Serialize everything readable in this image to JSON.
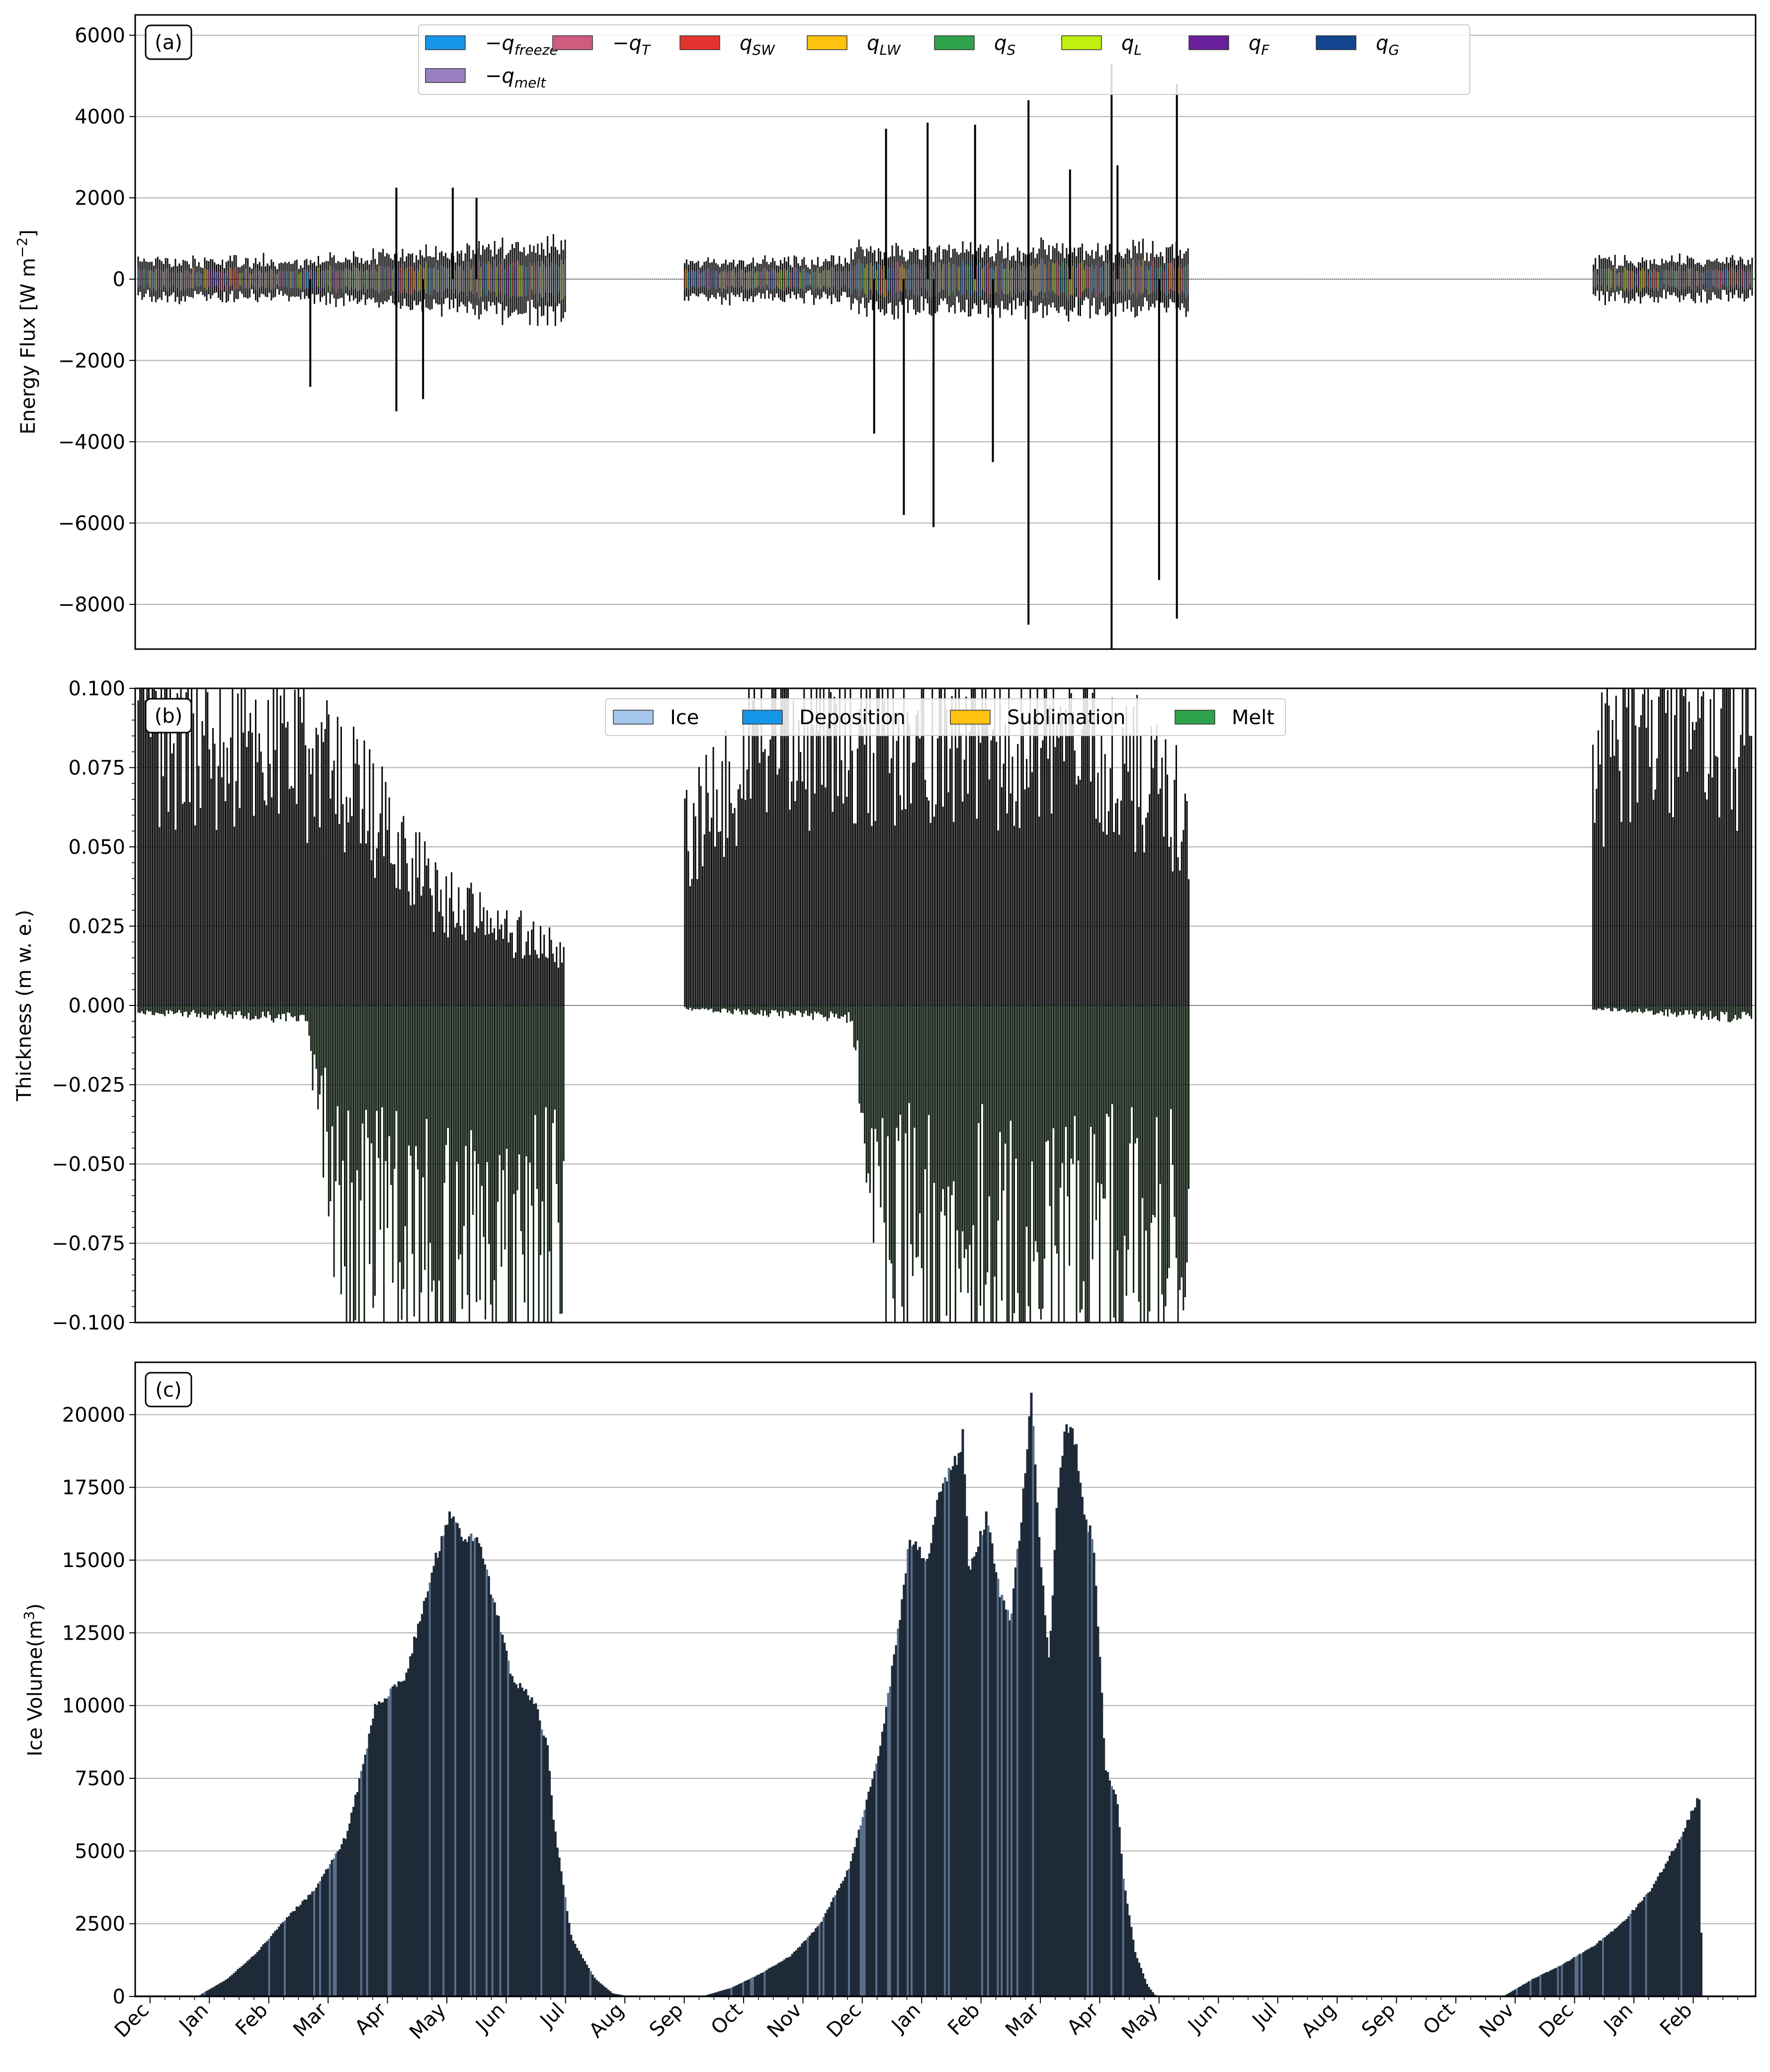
{
  "chart_data": [
    {
      "panel": "(a)",
      "type": "bar",
      "title": "",
      "xlabel": "",
      "ylabel": "Energy Flux [$W\\,m^{-2}$]",
      "ylabel_text": "Energy Flux [W m",
      "ylabel_sup": "−2",
      "ylabel_end": "]",
      "ylim": [
        -9100,
        6500
      ],
      "yticks": [
        6000,
        4000,
        2000,
        0,
        -2000,
        -4000,
        -6000,
        -8000
      ],
      "ytick_labels": [
        "6000",
        "4000",
        "2000",
        "0",
        "−2000",
        "−4000",
        "−6000",
        "−8000"
      ],
      "grid": "horizontal",
      "legend_position": "top-center",
      "legend": [
        {
          "name": "−q",
          "sub": "freeze",
          "color": "#1696e8"
        },
        {
          "name": "−q",
          "sub": "T",
          "color": "#cf5b7f"
        },
        {
          "name": "q",
          "sub": "SW",
          "color": "#e3342f"
        },
        {
          "name": "q",
          "sub": "LW",
          "color": "#ffc20e"
        },
        {
          "name": "q",
          "sub": "S",
          "color": "#2ca24a"
        },
        {
          "name": "q",
          "sub": "L",
          "color": "#bff00f"
        },
        {
          "name": "q",
          "sub": "F",
          "color": "#6a1f9a"
        },
        {
          "name": "q",
          "sub": "G",
          "color": "#12448f"
        },
        {
          "name": "−q",
          "sub": "melt",
          "color": "#9b7ec0"
        }
      ],
      "active_periods_month_index": [
        [
          0,
          7.2
        ],
        [
          9.2,
          17.7
        ],
        [
          24.5,
          27.2
        ]
      ],
      "typical_band": {
        "upper": 400,
        "lower": -400
      },
      "spikes": [
        {
          "month": 2.9,
          "value": -2650
        },
        {
          "month": 4.35,
          "value": 2250
        },
        {
          "month": 4.35,
          "value": -3250
        },
        {
          "month": 4.8,
          "value": -2950
        },
        {
          "month": 5.3,
          "value": 2250
        },
        {
          "month": 5.7,
          "value": 2000
        },
        {
          "month": 12.4,
          "value": -3800
        },
        {
          "month": 12.6,
          "value": 3700
        },
        {
          "month": 12.9,
          "value": -5800
        },
        {
          "month": 13.3,
          "value": 3850
        },
        {
          "month": 13.4,
          "value": -6100
        },
        {
          "month": 14.1,
          "value": 3800
        },
        {
          "month": 14.4,
          "value": -4500
        },
        {
          "month": 15.0,
          "value": 4400
        },
        {
          "month": 15.0,
          "value": -8500
        },
        {
          "month": 15.7,
          "value": 2700
        },
        {
          "month": 16.4,
          "value": 5300
        },
        {
          "month": 16.4,
          "value": -9100
        },
        {
          "month": 16.5,
          "value": 2800
        },
        {
          "month": 17.2,
          "value": -7400
        },
        {
          "month": 17.5,
          "value": 4800
        },
        {
          "month": 17.5,
          "value": -8350
        }
      ]
    },
    {
      "panel": "(b)",
      "type": "bar",
      "title": "",
      "xlabel": "",
      "ylabel": "Thickness ($m$ w. e.)",
      "ylabel_text": "Thickness (m w. e.)",
      "ylim": [
        -0.1,
        0.1
      ],
      "yticks": [
        0.1,
        0.075,
        0.05,
        0.025,
        0.0,
        -0.025,
        -0.05,
        -0.075,
        -0.1
      ],
      "ytick_labels": [
        "0.100",
        "0.075",
        "0.050",
        "0.025",
        "0.000",
        "−0.025",
        "−0.050",
        "−0.075",
        "−0.100"
      ],
      "grid": "horizontal",
      "legend_position": "top-center",
      "legend": [
        {
          "name": "Ice",
          "color": "#a4c6ea"
        },
        {
          "name": "Deposition",
          "color": "#1696e8"
        },
        {
          "name": "Sublimation",
          "color": "#ffc20e"
        },
        {
          "name": "Melt",
          "color": "#2ca24a"
        }
      ],
      "positive_envelope": [
        [
          0,
          0.1
        ],
        [
          2.5,
          0.1
        ],
        [
          3.5,
          0.08
        ],
        [
          4.5,
          0.06
        ],
        [
          5.0,
          0.04
        ],
        [
          6.0,
          0.03
        ],
        [
          7.2,
          0.02
        ],
        [
          9.2,
          0.06
        ],
        [
          10.0,
          0.085
        ],
        [
          10.5,
          0.1
        ],
        [
          16.0,
          0.1
        ],
        [
          17.7,
          0.07
        ],
        [
          24.5,
          0.08
        ],
        [
          25.0,
          0.1
        ],
        [
          27.2,
          0.1
        ]
      ],
      "negative_envelope": [
        [
          0,
          -0.002
        ],
        [
          2.8,
          -0.004
        ],
        [
          3.4,
          -0.1
        ],
        [
          5.6,
          -0.1
        ],
        [
          7.2,
          -0.1
        ],
        [
          9.2,
          -0.001
        ],
        [
          12.0,
          -0.004
        ],
        [
          12.6,
          -0.1
        ],
        [
          17.7,
          -0.1
        ],
        [
          24.5,
          -0.001
        ],
        [
          27.2,
          -0.004
        ]
      ]
    },
    {
      "panel": "(c)",
      "type": "bar",
      "title": "",
      "xlabel": "",
      "ylabel": "Ice Volume($m^3$)",
      "ylabel_text": "Ice Volume(m",
      "ylabel_sup": "3",
      "ylabel_end": ")",
      "ylim": [
        0,
        21800
      ],
      "yticks": [
        0,
        2500,
        5000,
        7500,
        10000,
        12500,
        15000,
        17500,
        20000
      ],
      "ytick_labels": [
        "0",
        "2500",
        "5000",
        "7500",
        "10000",
        "12500",
        "15000",
        "17500",
        "20000"
      ],
      "grid": "horizontal",
      "series_color": "#1f2a38",
      "volume_profile": [
        [
          0,
          0
        ],
        [
          1.0,
          0
        ],
        [
          1.5,
          600
        ],
        [
          2.0,
          1500
        ],
        [
          2.5,
          2700
        ],
        [
          3.0,
          3700
        ],
        [
          3.5,
          5500
        ],
        [
          3.8,
          8000
        ],
        [
          4.0,
          10000
        ],
        [
          4.5,
          11000
        ],
        [
          5.0,
          15000
        ],
        [
          5.25,
          16500
        ],
        [
          5.45,
          15800
        ],
        [
          5.75,
          15600
        ],
        [
          6.0,
          13500
        ],
        [
          6.3,
          11000
        ],
        [
          6.7,
          10000
        ],
        [
          6.9,
          8500
        ],
        [
          7.0,
          6000
        ],
        [
          7.3,
          2000
        ],
        [
          7.7,
          600
        ],
        [
          8.0,
          100
        ],
        [
          8.3,
          0
        ],
        [
          9.5,
          0
        ],
        [
          10.0,
          300
        ],
        [
          10.5,
          800
        ],
        [
          11.0,
          1400
        ],
        [
          11.5,
          2500
        ],
        [
          12.0,
          4500
        ],
        [
          12.5,
          8500
        ],
        [
          12.8,
          12500
        ],
        [
          13.0,
          15800
        ],
        [
          13.3,
          15000
        ],
        [
          13.5,
          17300
        ],
        [
          13.8,
          18500
        ],
        [
          13.9,
          19300
        ],
        [
          14.0,
          14500
        ],
        [
          14.3,
          16500
        ],
        [
          14.5,
          14000
        ],
        [
          14.7,
          13000
        ],
        [
          14.9,
          16800
        ],
        [
          15.05,
          20700
        ],
        [
          15.2,
          15000
        ],
        [
          15.35,
          11500
        ],
        [
          15.5,
          17500
        ],
        [
          15.65,
          19800
        ],
        [
          15.8,
          19000
        ],
        [
          15.95,
          16500
        ],
        [
          16.1,
          15600
        ],
        [
          16.3,
          7800
        ],
        [
          16.5,
          6700
        ],
        [
          16.6,
          4000
        ],
        [
          16.8,
          1500
        ],
        [
          17.0,
          400
        ],
        [
          17.15,
          0
        ],
        [
          23.0,
          0
        ],
        [
          23.5,
          600
        ],
        [
          24.0,
          1100
        ],
        [
          24.5,
          1700
        ],
        [
          25.0,
          2500
        ],
        [
          25.5,
          3700
        ],
        [
          26.0,
          5500
        ],
        [
          26.3,
          6900
        ],
        [
          26.35,
          0
        ],
        [
          27.2,
          0
        ]
      ]
    }
  ],
  "panels": {
    "a": {
      "tag": "(a)"
    },
    "b": {
      "tag": "(b)"
    },
    "c": {
      "tag": "(c)"
    }
  },
  "x_axis": {
    "month_labels": [
      "Dec",
      "Jan",
      "Feb",
      "Mar",
      "Apr",
      "May",
      "Jun",
      "Jul",
      "Aug",
      "Sep",
      "Oct",
      "Nov",
      "Dec",
      "Jan",
      "Feb",
      "Mar",
      "Apr",
      "May",
      "Jun",
      "Jul",
      "Aug",
      "Sep",
      "Oct",
      "Nov",
      "Dec",
      "Jan",
      "Feb"
    ],
    "xlim_months": [
      0,
      27.2
    ]
  }
}
